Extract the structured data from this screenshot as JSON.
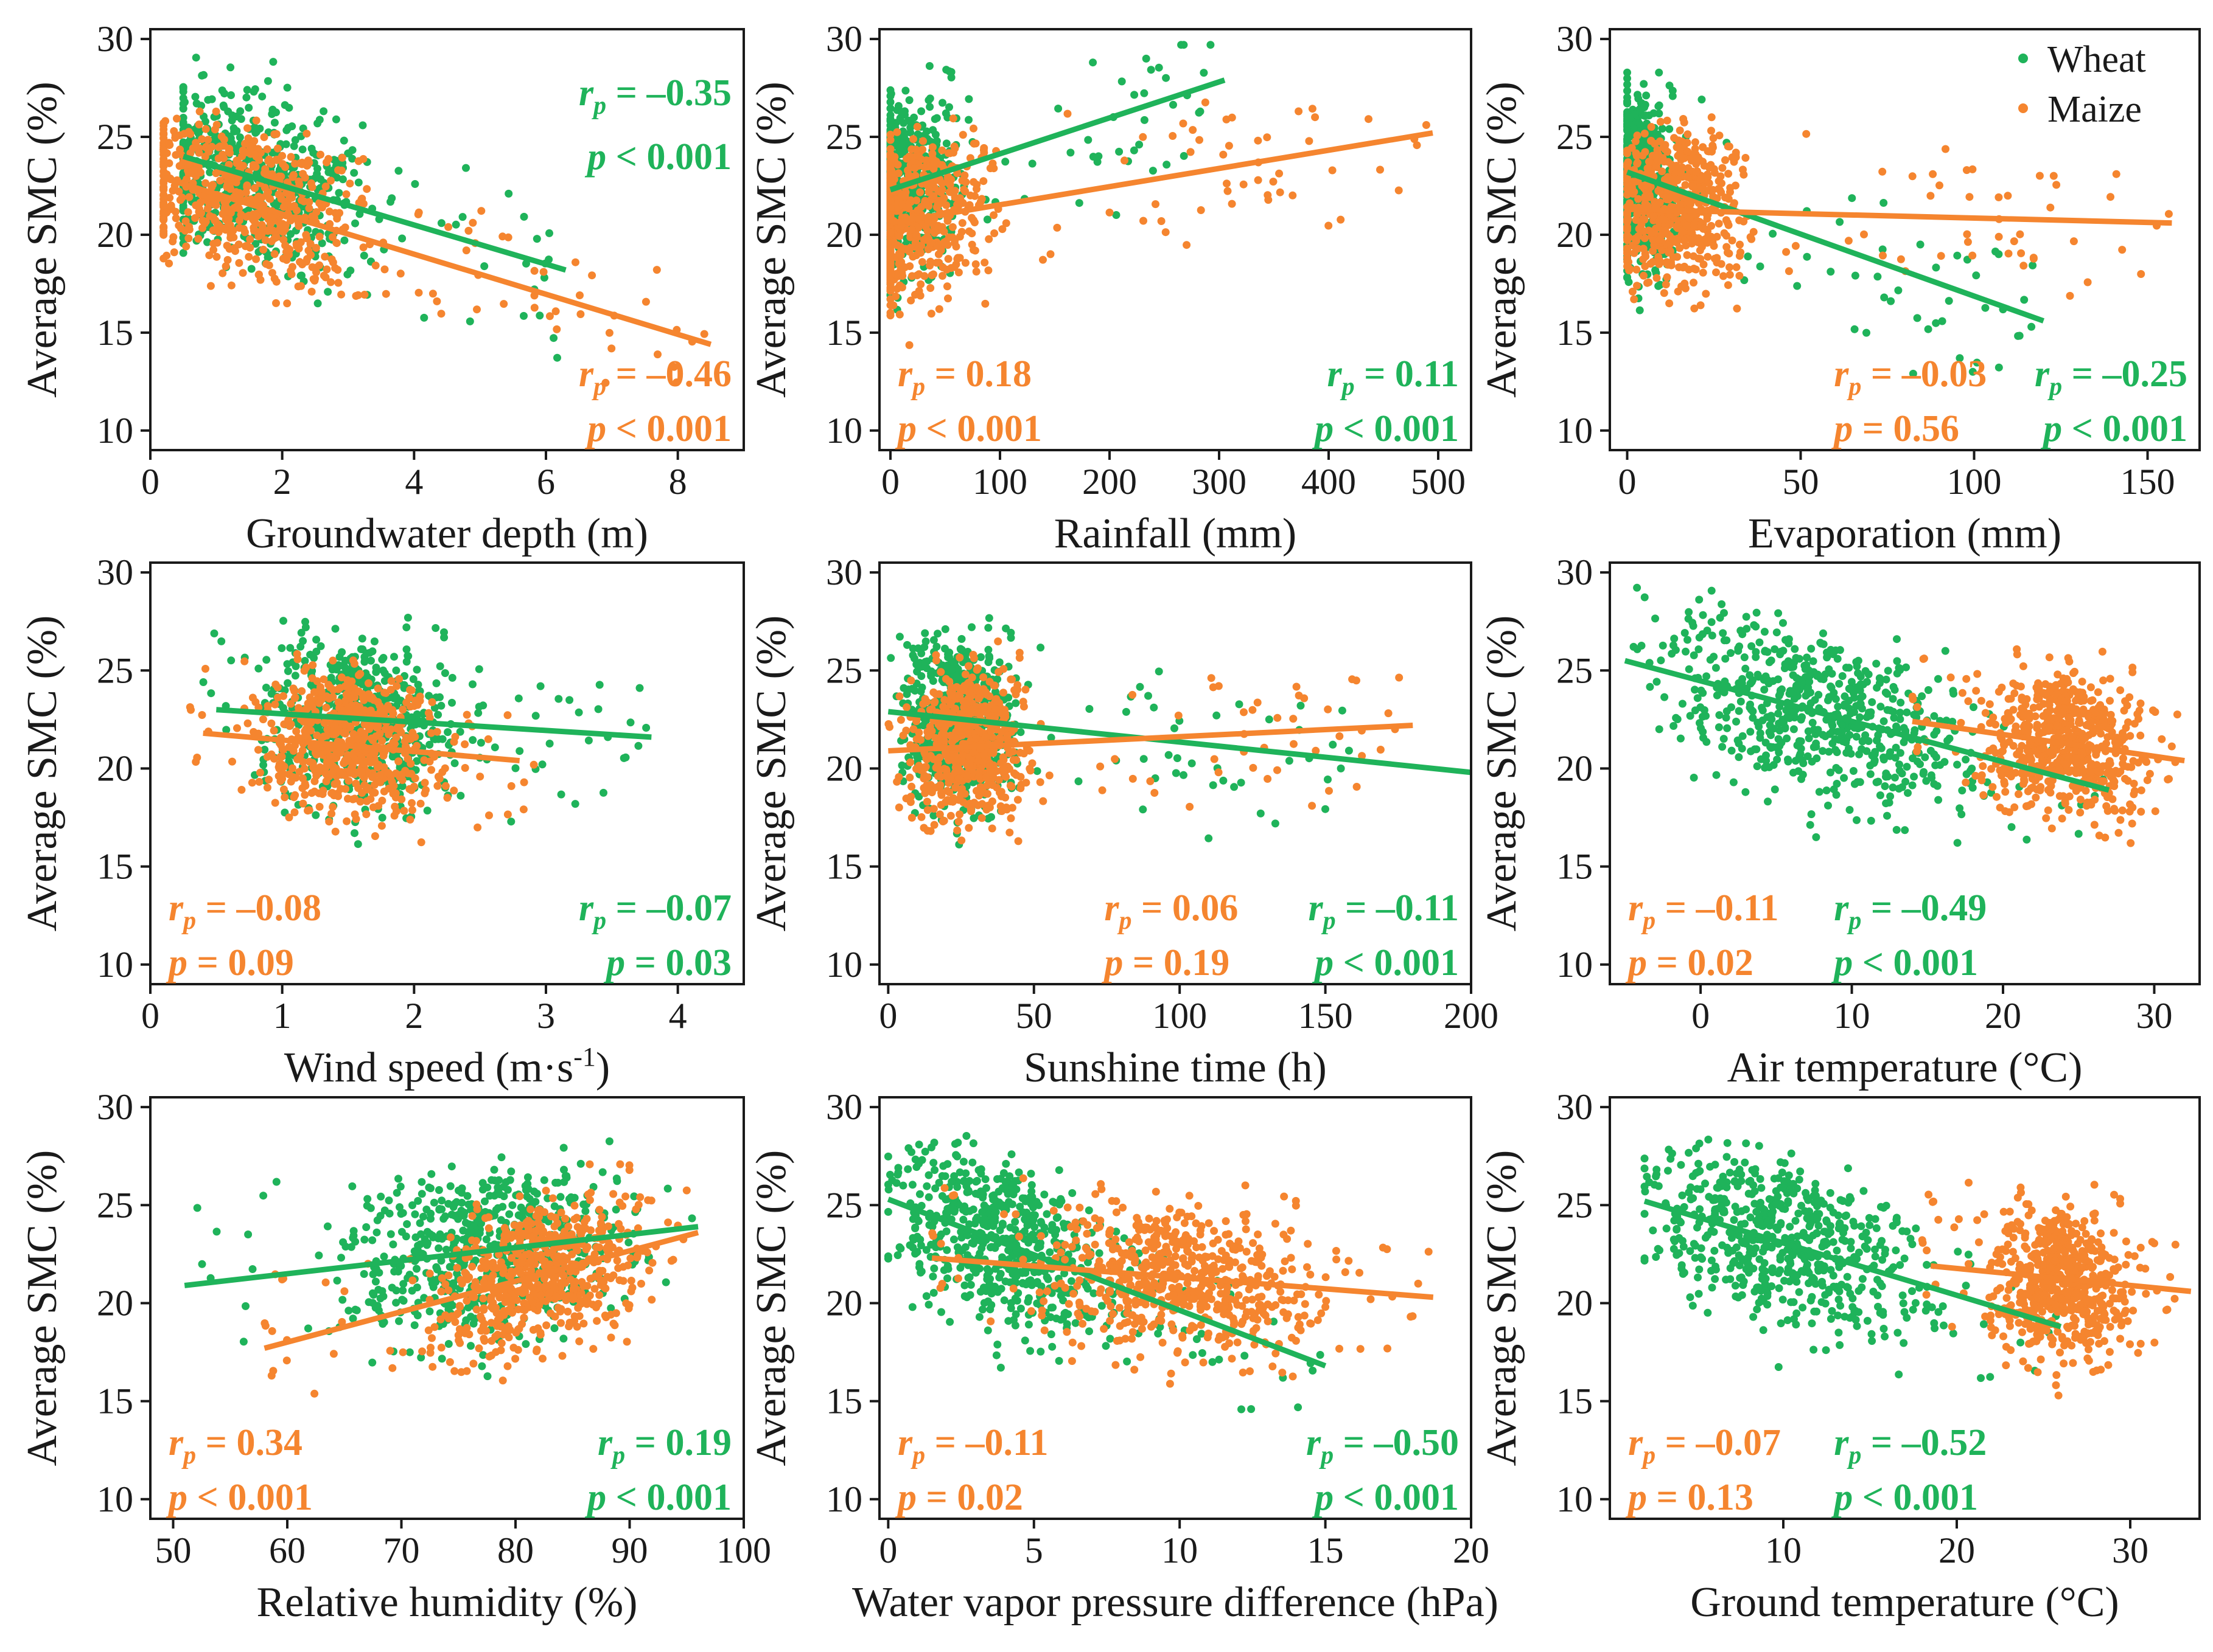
{
  "figure": {
    "colors": {
      "wheat": "#1fb35a",
      "maize": "#f5852f",
      "axis": "#1a1a1a"
    },
    "legend": {
      "wheat_label": "Wheat",
      "maize_label": "Maize",
      "placement": "top-right of first-row third panel"
    },
    "ylabel": "Average SMC (%)"
  },
  "chart_data": [
    {
      "type": "scatter",
      "id": "groundwater",
      "xlabel": "Groundwater depth (m)",
      "ylabel": "Average SMC (%)",
      "xlim": [
        0,
        9
      ],
      "ylim": [
        9,
        30.5
      ],
      "xticks": [
        0,
        2,
        4,
        6,
        8
      ],
      "yticks": [
        10,
        15,
        20,
        25,
        30
      ],
      "series": [
        {
          "name": "Wheat",
          "x_center": 1.4,
          "x_spread": 1.3,
          "x_min": 0.5,
          "x_max": 6.5,
          "y_center": 21.5,
          "y_spread": 3.0,
          "fit": {
            "x0": 0.5,
            "y0": 24.0,
            "x1": 6.3,
            "y1": 18.2
          }
        },
        {
          "name": "Maize",
          "x_center": 1.5,
          "x_spread": 1.4,
          "x_min": 0.2,
          "x_max": 8.5,
          "y_center": 21.0,
          "y_spread": 2.8,
          "fit": {
            "x0": 0.2,
            "y0": 22.9,
            "x1": 8.5,
            "y1": 14.4
          }
        }
      ],
      "annotations": [
        {
          "series": "Wheat",
          "r": "r_p = –0.35",
          "p": "p < 0.001",
          "pos": "top-right"
        },
        {
          "series": "Maize",
          "r": "r_p = –0.46",
          "p": "p < 0.001",
          "pos": "bottom-right"
        }
      ]
    },
    {
      "type": "scatter",
      "id": "rainfall",
      "xlabel": "Rainfall (mm)",
      "ylabel": "Average SMC (%)",
      "xlim": [
        -10,
        530
      ],
      "ylim": [
        9,
        30.5
      ],
      "xticks": [
        0,
        100,
        200,
        300,
        400,
        500
      ],
      "yticks": [
        10,
        15,
        20,
        25,
        30
      ],
      "series": [
        {
          "name": "Wheat",
          "x_center": 10,
          "x_spread": 40,
          "x_min": 0,
          "x_max": 300,
          "y_center": 22.5,
          "y_spread": 3.2,
          "fit": {
            "x0": 0,
            "y0": 22.3,
            "x1": 305,
            "y1": 27.9
          }
        },
        {
          "name": "Maize",
          "x_center": 20,
          "x_spread": 60,
          "x_min": 0,
          "x_max": 495,
          "y_center": 21.0,
          "y_spread": 3.0,
          "fit": {
            "x0": 0,
            "y0": 20.6,
            "x1": 495,
            "y1": 25.2
          }
        }
      ],
      "annotations": [
        {
          "series": "Maize",
          "r": "r_p = 0.18",
          "p": "p < 0.001",
          "pos": "bottom-left"
        },
        {
          "series": "Wheat",
          "r": "r_p = 0.11",
          "p": "p < 0.001",
          "pos": "bottom-right"
        }
      ]
    },
    {
      "type": "scatter",
      "id": "evaporation",
      "xlabel": "Evaporation (mm)",
      "ylabel": "Average SMC (%)",
      "xlim": [
        -5,
        165
      ],
      "ylim": [
        9,
        30.5
      ],
      "xticks": [
        0,
        50,
        100,
        150
      ],
      "yticks": [
        10,
        15,
        20,
        25,
        30
      ],
      "series": [
        {
          "name": "Wheat",
          "x_center": 4,
          "x_spread": 8,
          "x_min": 0,
          "x_max": 120,
          "y_center": 22.5,
          "y_spread": 3.2,
          "fit": {
            "x0": 0,
            "y0": 23.2,
            "x1": 120,
            "y1": 15.6
          }
        },
        {
          "name": "Maize",
          "x_center": 15,
          "x_spread": 15,
          "x_min": 0,
          "x_max": 158,
          "y_center": 21.0,
          "y_spread": 3.0,
          "fit": {
            "x0": 0,
            "y0": 21.3,
            "x1": 157,
            "y1": 20.6
          }
        }
      ],
      "annotations": [
        {
          "series": "Maize",
          "r": "r_p = –0.03",
          "p": "p = 0.56",
          "pos": "bottom-middle"
        },
        {
          "series": "Wheat",
          "r": "r_p = –0.25",
          "p": "p < 0.001",
          "pos": "bottom-right"
        }
      ]
    },
    {
      "type": "scatter",
      "id": "wind",
      "xlabel": "Wind speed (m·s-1)",
      "ylabel": "Average SMC (%)",
      "xlim": [
        0,
        4.5
      ],
      "ylim": [
        9,
        30.5
      ],
      "xticks": [
        0,
        1,
        2,
        3,
        4
      ],
      "yticks": [
        10,
        15,
        20,
        25,
        30
      ],
      "series": [
        {
          "name": "Wheat",
          "x_center": 1.6,
          "x_spread": 0.55,
          "x_min": 0.4,
          "x_max": 3.8,
          "y_center": 22.5,
          "y_spread": 3.0,
          "fit": {
            "x0": 0.5,
            "y0": 23.0,
            "x1": 3.8,
            "y1": 21.6
          }
        },
        {
          "name": "Maize",
          "x_center": 1.5,
          "x_spread": 0.5,
          "x_min": 0.3,
          "x_max": 3.0,
          "y_center": 21.3,
          "y_spread": 2.8,
          "fit": {
            "x0": 0.4,
            "y0": 21.8,
            "x1": 2.8,
            "y1": 20.4
          }
        }
      ],
      "annotations": [
        {
          "series": "Maize",
          "r": "r_p = –0.08",
          "p": "p = 0.09",
          "pos": "bottom-left"
        },
        {
          "series": "Wheat",
          "r": "r_p = –0.07",
          "p": "p = 0.03",
          "pos": "bottom-right"
        }
      ]
    },
    {
      "type": "scatter",
      "id": "sunshine",
      "xlabel": "Sunshine time (h)",
      "ylabel": "Average SMC (%)",
      "xlim": [
        -3,
        200
      ],
      "ylim": [
        9,
        30.5
      ],
      "xticks": [
        0,
        50,
        100,
        150,
        200
      ],
      "yticks": [
        10,
        15,
        20,
        25,
        30
      ],
      "series": [
        {
          "name": "Wheat",
          "x_center": 25,
          "x_spread": 15,
          "x_min": 0,
          "x_max": 160,
          "y_center": 22.5,
          "y_spread": 3.0,
          "fit": {
            "x0": 0,
            "y0": 22.9,
            "x1": 200,
            "y1": 19.8
          }
        },
        {
          "name": "Maize",
          "x_center": 28,
          "x_spread": 15,
          "x_min": 0,
          "x_max": 180,
          "y_center": 21.0,
          "y_spread": 3.0,
          "fit": {
            "x0": 0,
            "y0": 20.9,
            "x1": 180,
            "y1": 22.2
          }
        }
      ],
      "annotations": [
        {
          "series": "Maize",
          "r": "r_p = 0.06",
          "p": "p = 0.19",
          "pos": "bottom-middle"
        },
        {
          "series": "Wheat",
          "r": "r_p = –0.11",
          "p": "p < 0.001",
          "pos": "bottom-right"
        }
      ]
    },
    {
      "type": "scatter",
      "id": "airtemp",
      "xlabel": "Air temperature (°C)",
      "ylabel": "Average SMC (%)",
      "xlim": [
        -6,
        33
      ],
      "ylim": [
        9,
        30.5
      ],
      "xticks": [
        0,
        10,
        20,
        30
      ],
      "yticks": [
        10,
        15,
        20,
        25,
        30
      ],
      "series": [
        {
          "name": "Wheat",
          "x_center": 8,
          "x_spread": 8,
          "x_min": -5,
          "x_max": 27,
          "y_center": 22.5,
          "y_spread": 3.0,
          "fit": {
            "x0": -5,
            "y0": 25.5,
            "x1": 27,
            "y1": 18.9
          }
        },
        {
          "name": "Maize",
          "x_center": 24,
          "x_spread": 4,
          "x_min": 14,
          "x_max": 32,
          "y_center": 21.3,
          "y_spread": 2.8,
          "fit": {
            "x0": 14,
            "y0": 22.4,
            "x1": 32,
            "y1": 20.4
          }
        }
      ],
      "annotations": [
        {
          "series": "Maize",
          "r": "r_p = –0.11",
          "p": "p = 0.02",
          "pos": "bottom-left"
        },
        {
          "series": "Wheat",
          "r": "r_p = –0.49",
          "p": "p < 0.001",
          "pos": "bottom-middle"
        }
      ]
    },
    {
      "type": "scatter",
      "id": "humidity",
      "xlabel": "Relative humidity (%)",
      "ylabel": "Average SMC (%)",
      "xlim": [
        48,
        100
      ],
      "ylim": [
        9,
        30.5
      ],
      "xticks": [
        50,
        60,
        70,
        80,
        90,
        100
      ],
      "yticks": [
        10,
        15,
        20,
        25,
        30
      ],
      "series": [
        {
          "name": "Wheat",
          "x_center": 78,
          "x_spread": 10,
          "x_min": 51,
          "x_max": 96,
          "y_center": 22.5,
          "y_spread": 3.0,
          "fit": {
            "x0": 51,
            "y0": 20.9,
            "x1": 96,
            "y1": 23.9
          }
        },
        {
          "name": "Maize",
          "x_center": 82,
          "x_spread": 7,
          "x_min": 58,
          "x_max": 96,
          "y_center": 21.5,
          "y_spread": 2.8,
          "fit": {
            "x0": 58,
            "y0": 17.7,
            "x1": 96,
            "y1": 23.6
          }
        }
      ],
      "annotations": [
        {
          "series": "Maize",
          "r": "r_p = 0.34",
          "p": "p < 0.001",
          "pos": "bottom-left"
        },
        {
          "series": "Wheat",
          "r": "r_p = 0.19",
          "p": "p < 0.001",
          "pos": "bottom-right"
        }
      ]
    },
    {
      "type": "scatter",
      "id": "vpd",
      "xlabel": "Water vapor pressure difference (hPa)",
      "ylabel": "Average SMC (%)",
      "xlim": [
        -0.3,
        20
      ],
      "ylim": [
        9,
        30.5
      ],
      "xticks": [
        0,
        5,
        10,
        15,
        20
      ],
      "yticks": [
        10,
        15,
        20,
        25,
        30
      ],
      "series": [
        {
          "name": "Wheat",
          "x_center": 4,
          "x_spread": 3,
          "x_min": 0,
          "x_max": 15,
          "y_center": 23.0,
          "y_spread": 3.0,
          "fit": {
            "x0": 0,
            "y0": 25.3,
            "x1": 15,
            "y1": 16.8
          }
        },
        {
          "name": "Maize",
          "x_center": 10,
          "x_spread": 3.5,
          "x_min": 1.5,
          "x_max": 19,
          "y_center": 21.3,
          "y_spread": 2.8,
          "fit": {
            "x0": 1.5,
            "y0": 22.3,
            "x1": 18.7,
            "y1": 20.3
          }
        }
      ],
      "annotations": [
        {
          "series": "Maize",
          "r": "r_p = –0.11",
          "p": "p = 0.02",
          "pos": "bottom-left"
        },
        {
          "series": "Wheat",
          "r": "r_p = –0.50",
          "p": "p < 0.001",
          "pos": "bottom-right"
        }
      ]
    },
    {
      "type": "scatter",
      "id": "groundtemp",
      "xlabel": "Ground temperature (°C)",
      "ylabel": "Average SMC (%)",
      "xlim": [
        0,
        34
      ],
      "ylim": [
        9,
        30.5
      ],
      "xticks": [
        10,
        20,
        30
      ],
      "yticks": [
        10,
        15,
        20,
        25,
        30
      ],
      "series": [
        {
          "name": "Wheat",
          "x_center": 10,
          "x_spread": 6,
          "x_min": 2,
          "x_max": 26,
          "y_center": 22.8,
          "y_spread": 3.0,
          "fit": {
            "x0": 2,
            "y0": 25.2,
            "x1": 26,
            "y1": 18.8
          }
        },
        {
          "name": "Maize",
          "x_center": 26,
          "x_spread": 3,
          "x_min": 18,
          "x_max": 33,
          "y_center": 21.3,
          "y_spread": 2.8,
          "fit": {
            "x0": 18.5,
            "y0": 21.9,
            "x1": 33.5,
            "y1": 20.6
          }
        }
      ],
      "annotations": [
        {
          "series": "Maize",
          "r": "r_p = –0.07",
          "p": "p = 0.13",
          "pos": "bottom-left"
        },
        {
          "series": "Wheat",
          "r": "r_p = –0.52",
          "p": "p < 0.001",
          "pos": "bottom-middle"
        }
      ]
    }
  ]
}
